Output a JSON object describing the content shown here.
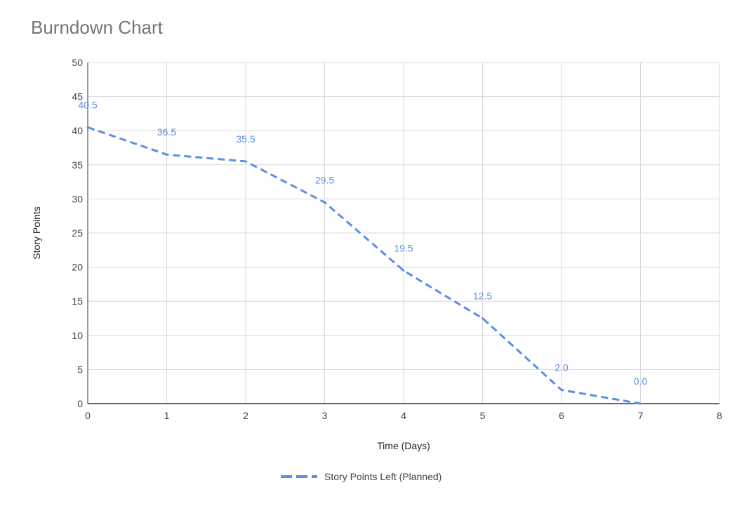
{
  "chart_data": {
    "type": "line",
    "title": "Burndown Chart",
    "xlabel": "Time (Days)",
    "ylabel": "Story Points",
    "xlim": [
      0,
      8
    ],
    "ylim": [
      0,
      50
    ],
    "x_ticks": [
      0,
      1,
      2,
      3,
      4,
      5,
      6,
      7,
      8
    ],
    "y_ticks": [
      0,
      5,
      10,
      15,
      20,
      25,
      30,
      35,
      40,
      45,
      50
    ],
    "grid": true,
    "legend_position": "bottom",
    "series": [
      {
        "name": "Story Points Left (Planned)",
        "color": "#5b8ee6",
        "line_style": "dashed",
        "x": [
          0,
          1,
          2,
          3,
          4,
          5,
          6,
          7
        ],
        "y": [
          40.5,
          36.5,
          35.5,
          29.5,
          19.5,
          12.5,
          2.0,
          0.0
        ],
        "labels": [
          "40.5",
          "36.5",
          "35.5",
          "29.5",
          "19.5",
          "12.5",
          "2.0",
          "0.0"
        ]
      }
    ]
  }
}
